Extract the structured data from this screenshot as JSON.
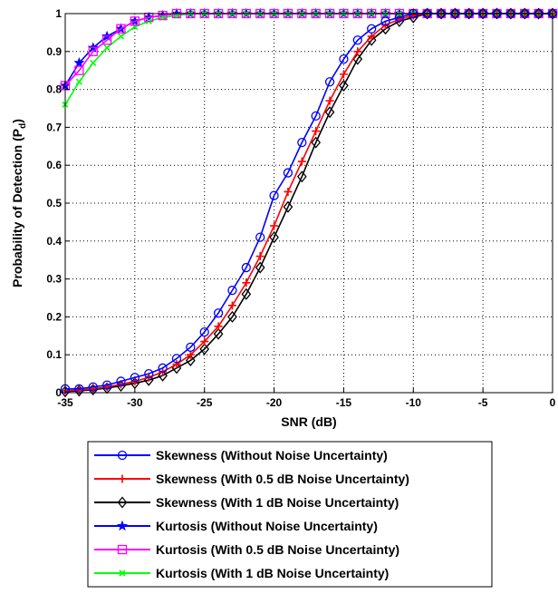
{
  "chart_data": {
    "type": "line",
    "title": "",
    "xlabel": "SNR (dB)",
    "ylabel": "Probability of Detection (P",
    "ylabel_subscript": "d",
    "ylabel_close": ")",
    "xlim": [
      -35,
      0
    ],
    "ylim": [
      0,
      1
    ],
    "grid": true,
    "grid_style": "dotted",
    "legend_position": "below",
    "x_ticks": [
      -35,
      -30,
      -25,
      -20,
      -15,
      -10,
      -5,
      0
    ],
    "x_tick_labels": [
      "-35",
      "-30",
      "-25",
      "-20",
      "-15",
      "-10",
      "-5",
      "0"
    ],
    "y_ticks": [
      0,
      0.1,
      0.2,
      0.3,
      0.4,
      0.5,
      0.6,
      0.7,
      0.8,
      0.9,
      1
    ],
    "y_tick_labels": [
      "0",
      "0.1",
      "0.2",
      "0.3",
      "0.4",
      "0.5",
      "0.6",
      "0.7",
      "0.8",
      "0.9",
      "1"
    ],
    "x": [
      -35,
      -34,
      -33,
      -32,
      -31,
      -30,
      -29,
      -28,
      -27,
      -26,
      -25,
      -24,
      -23,
      -22,
      -21,
      -20,
      -19,
      -18,
      -17,
      -16,
      -15,
      -14,
      -13,
      -12,
      -11,
      -10,
      -9,
      -8,
      -7,
      -6,
      -5,
      -4,
      -3,
      -2,
      -1,
      0
    ],
    "series": [
      {
        "name": "Skewness (Without Noise Uncertainty)",
        "color": "#0000ff",
        "marker": "circle",
        "values": [
          0.01,
          0.01,
          0.015,
          0.02,
          0.03,
          0.04,
          0.05,
          0.065,
          0.09,
          0.12,
          0.16,
          0.21,
          0.27,
          0.33,
          0.41,
          0.52,
          0.58,
          0.66,
          0.73,
          0.82,
          0.88,
          0.93,
          0.96,
          0.98,
          0.99,
          1,
          1,
          1,
          1,
          1,
          1,
          1,
          1,
          1,
          1,
          1
        ]
      },
      {
        "name": "Skewness (With 0.5 dB Noise Uncertainty)",
        "color": "#ff0000",
        "marker": "plus",
        "values": [
          0.005,
          0.007,
          0.01,
          0.015,
          0.022,
          0.03,
          0.04,
          0.055,
          0.075,
          0.1,
          0.135,
          0.175,
          0.23,
          0.29,
          0.36,
          0.44,
          0.53,
          0.61,
          0.69,
          0.77,
          0.84,
          0.9,
          0.94,
          0.97,
          0.985,
          0.995,
          1,
          1,
          1,
          1,
          1,
          1,
          1,
          1,
          1,
          1
        ]
      },
      {
        "name": "Skewness (With 1 dB Noise Uncertainty)",
        "color": "#000000",
        "marker": "diamond",
        "values": [
          0.003,
          0.005,
          0.008,
          0.012,
          0.018,
          0.025,
          0.033,
          0.045,
          0.065,
          0.085,
          0.115,
          0.155,
          0.2,
          0.26,
          0.33,
          0.41,
          0.49,
          0.57,
          0.66,
          0.74,
          0.81,
          0.88,
          0.93,
          0.96,
          0.98,
          0.99,
          1,
          1,
          1,
          1,
          1,
          1,
          1,
          1,
          1,
          1
        ]
      },
      {
        "name": "Kurtosis (Without Noise Uncertainty)",
        "color": "#0000ff",
        "marker": "star",
        "values": [
          0.81,
          0.87,
          0.91,
          0.94,
          0.96,
          0.98,
          0.99,
          0.995,
          1,
          1,
          1,
          1,
          1,
          1,
          1,
          1,
          1,
          1,
          1,
          1,
          1,
          1,
          1,
          1,
          1,
          1,
          1,
          1,
          1,
          1,
          1,
          1,
          1,
          1,
          1,
          1
        ]
      },
      {
        "name": "Kurtosis (With 0.5 dB Noise Uncertainty)",
        "color": "#ff00ff",
        "marker": "square",
        "values": [
          0.81,
          0.85,
          0.9,
          0.93,
          0.96,
          0.98,
          0.99,
          0.995,
          1,
          1,
          1,
          1,
          1,
          1,
          1,
          1,
          1,
          1,
          1,
          1,
          1,
          1,
          1,
          1,
          1,
          1,
          1,
          1,
          1,
          1,
          1,
          1,
          1,
          1,
          1,
          1
        ]
      },
      {
        "name": "Kurtosis (With 1 dB Noise Uncertainty)",
        "color": "#00ff00",
        "marker": "x",
        "values": [
          0.76,
          0.82,
          0.87,
          0.91,
          0.94,
          0.965,
          0.98,
          0.99,
          0.995,
          1,
          1,
          1,
          1,
          1,
          1,
          1,
          1,
          1,
          1,
          1,
          1,
          1,
          1,
          1,
          1,
          1,
          1,
          1,
          1,
          1,
          1,
          1,
          1,
          1,
          1,
          1
        ]
      }
    ]
  }
}
